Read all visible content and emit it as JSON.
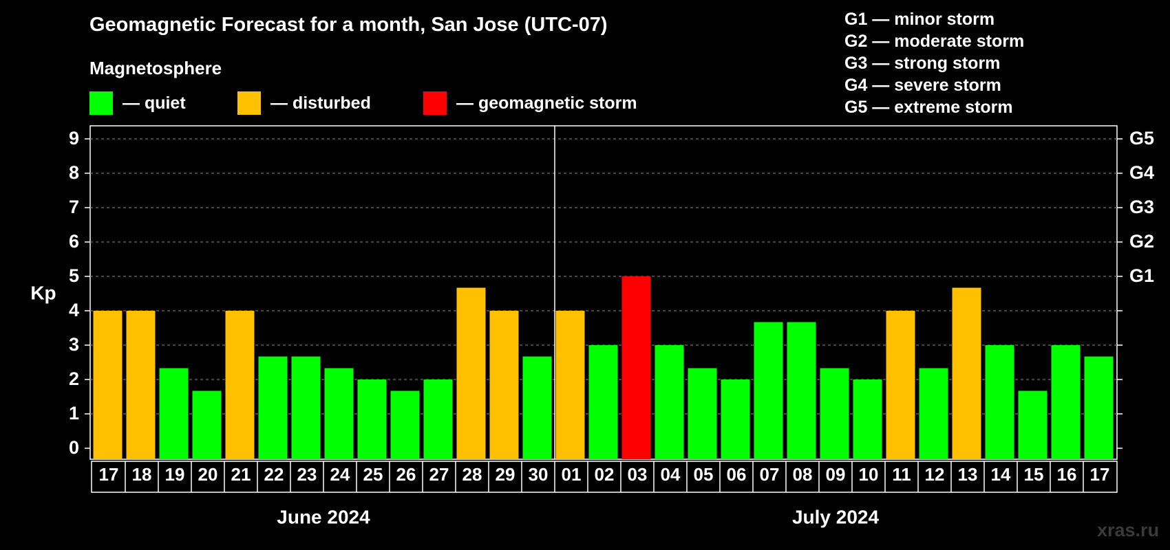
{
  "title": "Geomagnetic Forecast for a month, San Jose (UTC-07)",
  "subtitle": "Magnetosphere",
  "legend": [
    {
      "label": "— quiet",
      "color": "#00ff00"
    },
    {
      "label": "— disturbed",
      "color": "#ffc000"
    },
    {
      "label": "— geomagnetic storm",
      "color": "#ff0000"
    }
  ],
  "g_scale_legend": [
    "G1 — minor storm",
    "G2 — moderate storm",
    "G3 — strong storm",
    "G4 — severe storm",
    "G5 — extreme storm"
  ],
  "watermark": "xras.ru",
  "chart_data": {
    "type": "bar",
    "title": "Geomagnetic Forecast for a month, San Jose (UTC-07)",
    "ylabel": "Kp",
    "ylim": [
      0,
      9
    ],
    "yticks": [
      "0",
      "1",
      "2",
      "3",
      "4",
      "5",
      "6",
      "7",
      "8",
      "9"
    ],
    "right_axis_labels": [
      {
        "value": 5,
        "label": "G1"
      },
      {
        "value": 6,
        "label": "G2"
      },
      {
        "value": 7,
        "label": "G3"
      },
      {
        "value": 8,
        "label": "G4"
      },
      {
        "value": 9,
        "label": "G5"
      }
    ],
    "grid": "dashed horizontal",
    "months": [
      {
        "label": "June 2024",
        "start_index": 0,
        "end_index": 13
      },
      {
        "label": "July 2024",
        "start_index": 14,
        "end_index": 30
      }
    ],
    "categories": [
      "17",
      "18",
      "19",
      "20",
      "21",
      "22",
      "23",
      "24",
      "25",
      "26",
      "27",
      "28",
      "29",
      "30",
      "01",
      "02",
      "03",
      "04",
      "05",
      "06",
      "07",
      "08",
      "09",
      "10",
      "11",
      "12",
      "13",
      "14",
      "15",
      "16",
      "17"
    ],
    "values": [
      4,
      4,
      2.33,
      1.67,
      4,
      2.67,
      2.67,
      2.33,
      2,
      1.67,
      2,
      4.67,
      4,
      2.67,
      4,
      3,
      5,
      3,
      2.33,
      2,
      3.67,
      3.67,
      2.33,
      2,
      4,
      2.33,
      4.67,
      3,
      1.67,
      3,
      2.67
    ],
    "colors": {
      "quiet": "#00ff00",
      "disturbed": "#ffc000",
      "storm": "#ff0000"
    }
  }
}
